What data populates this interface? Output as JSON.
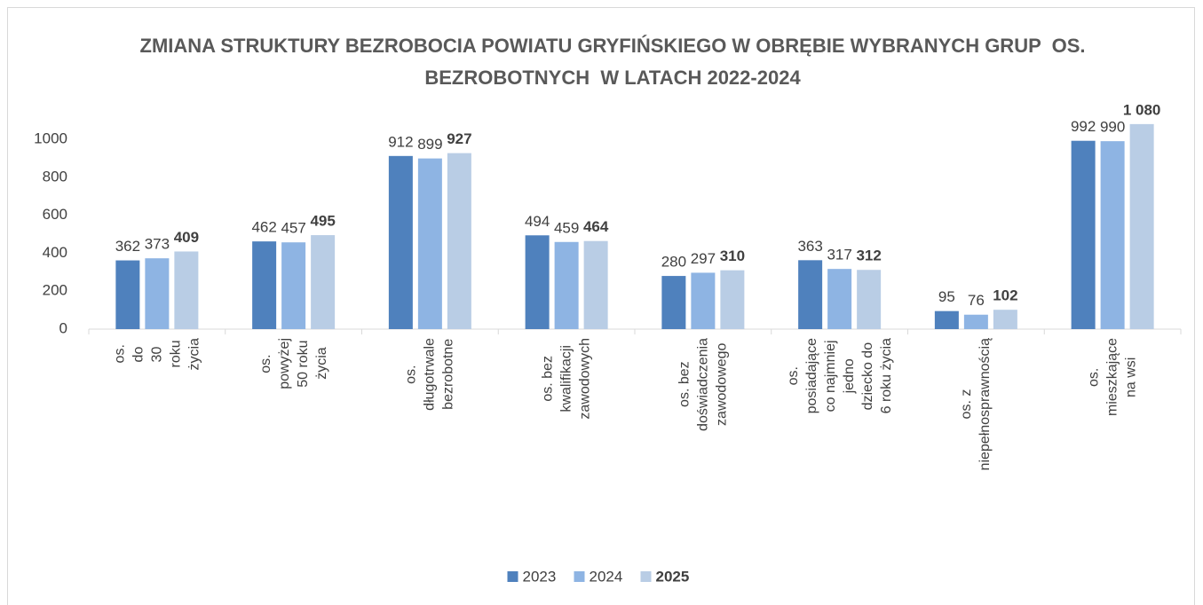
{
  "chart_data": {
    "type": "bar",
    "title": "ZMIANA STRUKTURY BEZROBOCIA POWIATU GRYFIŃSKIEGO W OBRĘBIE WYBRANYCH GRUP  OS. BEZROBOTNYCH  W LATACH 2022-2024",
    "categories": [
      "os. do 30 roku życia",
      "os. powyżej 50 roku życia",
      "os. długotrwale bezrobotne",
      "os. bez kwalifikacji zawodowych",
      "os. bez doświadczenia zawodowego",
      "os. posiadające co najmniej jedno dziecko do 6 roku życia",
      "os. z niepełnosprawnością",
      "os. mieszkające na wsi"
    ],
    "series": [
      {
        "name": "2023",
        "color": "#4f81bd",
        "values": [
          362,
          462,
          912,
          494,
          280,
          363,
          95,
          992
        ]
      },
      {
        "name": "2024",
        "color": "#8eb4e3",
        "values": [
          373,
          457,
          899,
          459,
          297,
          317,
          76,
          990
        ]
      },
      {
        "name": "2025",
        "color": "#b9cde5",
        "bold": true,
        "values": [
          409,
          495,
          927,
          464,
          310,
          312,
          102,
          1080
        ],
        "value_labels": [
          "409",
          "495",
          "927",
          "464",
          "310",
          "312",
          "102",
          "1 080"
        ]
      }
    ],
    "ylim": [
      0,
      1200
    ],
    "yticks": [
      0,
      200,
      400,
      600,
      800,
      1000
    ],
    "grid": false,
    "legend": "bottom"
  }
}
